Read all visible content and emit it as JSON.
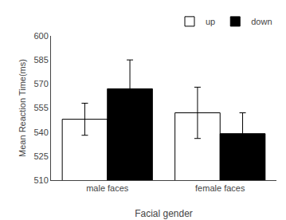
{
  "chart_data": {
    "type": "bar",
    "categories": [
      "male faces",
      "female faces"
    ],
    "series": [
      {
        "name": "up",
        "color": "#ffffff",
        "values": [
          548,
          552
        ],
        "errors": [
          10,
          16
        ]
      },
      {
        "name": "down",
        "color": "#000000",
        "values": [
          567,
          539
        ],
        "errors": [
          18,
          13
        ]
      }
    ],
    "xlabel": "Facial gender",
    "ylabel": "Mean Reaction Time(ms)",
    "ylim": [
      510,
      600
    ],
    "yticks": [
      510,
      525,
      540,
      555,
      570,
      585,
      600
    ],
    "grid": false,
    "legend": "upper right"
  }
}
